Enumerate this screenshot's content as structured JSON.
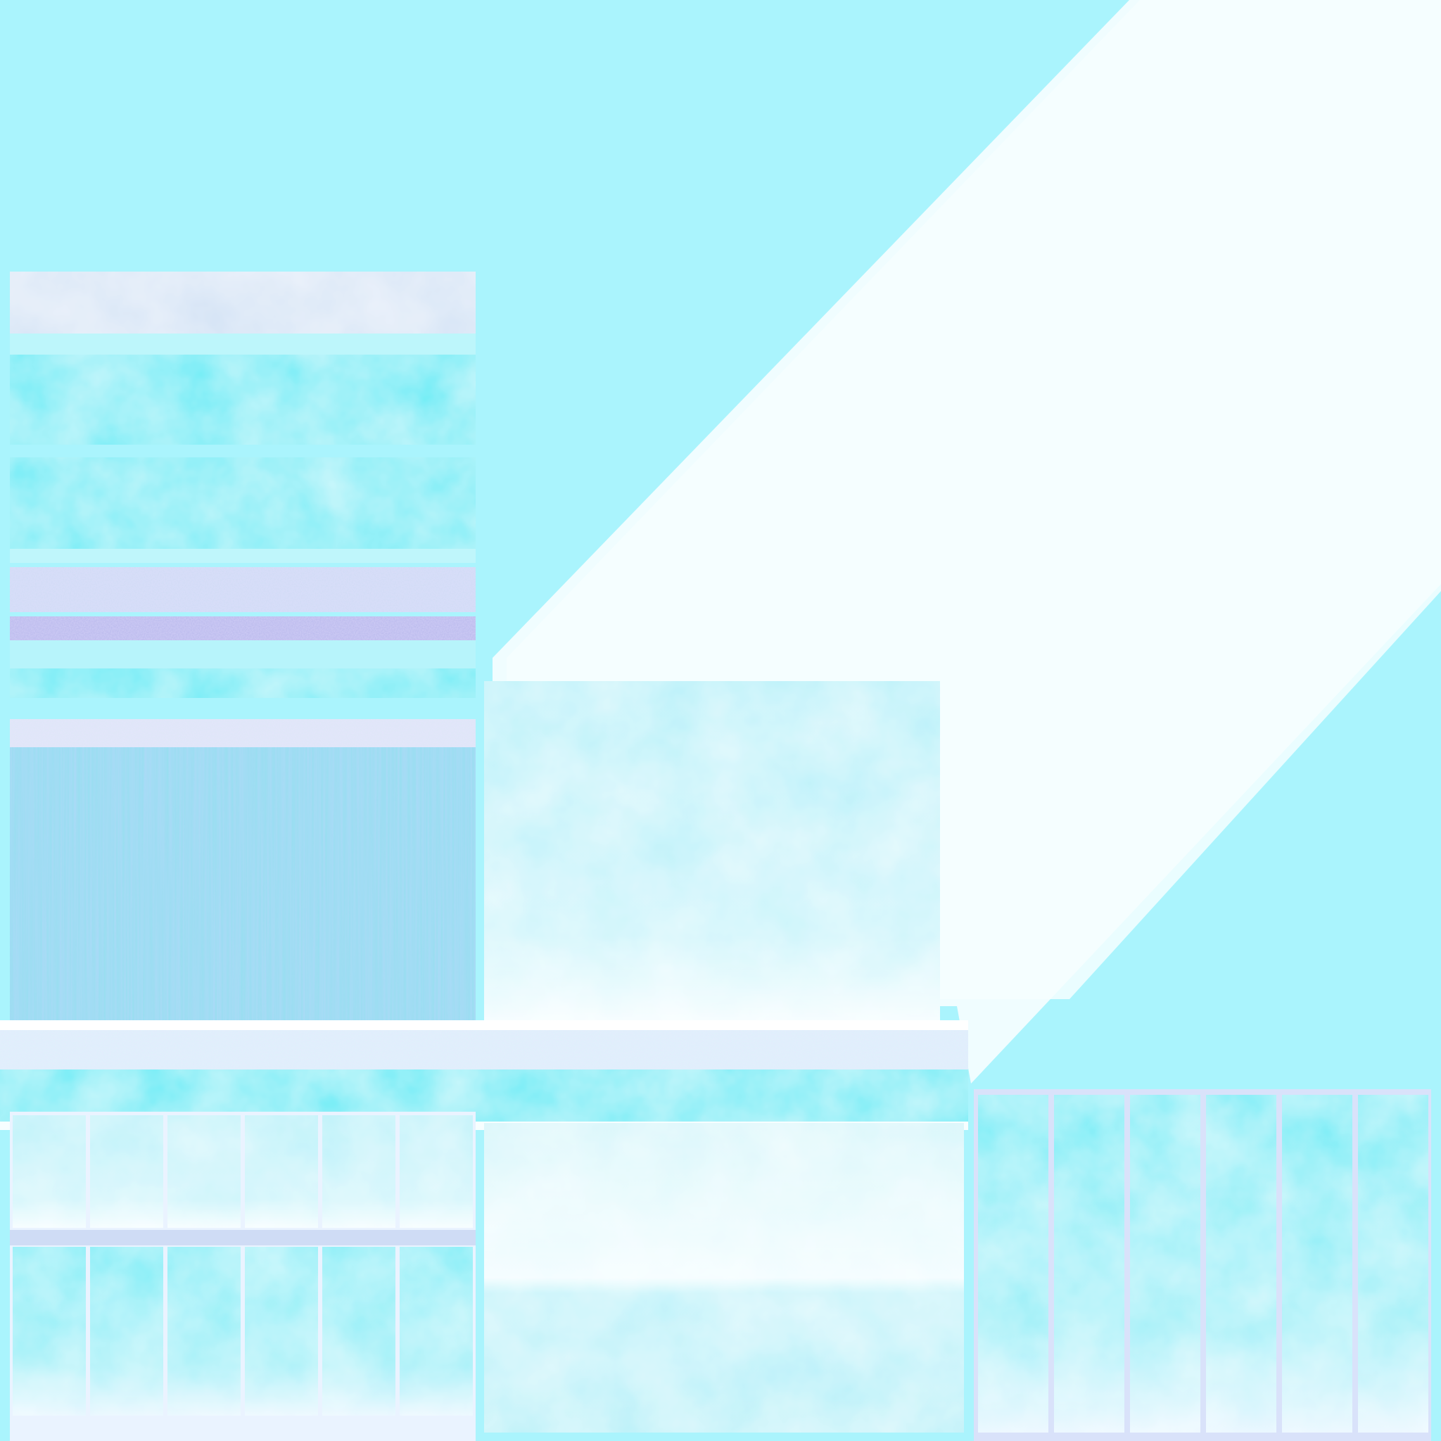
{
  "texture": {
    "type": "uv-texture-atlas",
    "theme": "ice",
    "colors": {
      "background": "#aaf4fd",
      "frost_white": "#eefcff",
      "ice_cyan": "#62ecf6",
      "ice_cyan_light": "#8ef0f8",
      "ice_pale": "#c7f6fb",
      "frost_lavender": "#cfdcf5",
      "lavender_trim": "#b7b8ec",
      "vertical_grain": "#95dff0",
      "panel_divider": "#dfe8f7"
    },
    "regions": [
      {
        "name": "stripe-strip",
        "layers": [
          "frost",
          "cyan",
          "cyan",
          "frost",
          "lavender",
          "cyan",
          "frost",
          "vertical-grain"
        ]
      },
      {
        "name": "diagonal-glow-band"
      },
      {
        "name": "square-ice-panel"
      },
      {
        "name": "wall-panel-grid",
        "rows": 2,
        "columns": 6
      },
      {
        "name": "wall-middle-panel"
      },
      {
        "name": "tall-panel-grid",
        "rows": 1,
        "columns": 6
      }
    ]
  }
}
